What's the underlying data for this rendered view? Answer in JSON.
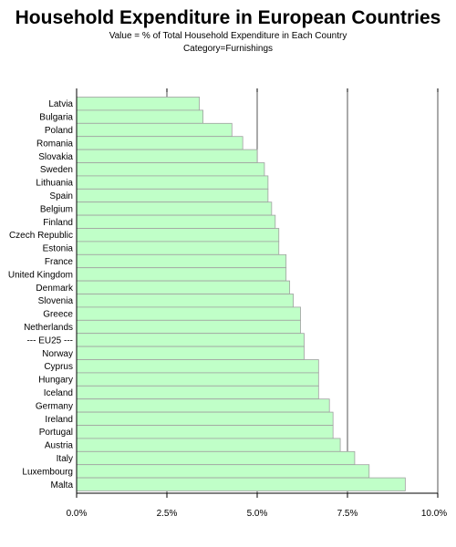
{
  "chart_data": {
    "type": "bar",
    "orientation": "horizontal",
    "title": "Household Expenditure in European Countries",
    "subtitle": "Value = % of Total Household Expenditure in Each Country",
    "subtitle2": "Category=Furnishings",
    "xlabel": "",
    "ylabel": "",
    "xlim": [
      0,
      10
    ],
    "x_ticks": [
      0,
      2.5,
      5,
      7.5,
      10
    ],
    "x_tick_labels": [
      "0.0%",
      "2.5%",
      "5.0%",
      "7.5%",
      "10.0%"
    ],
    "grid": "vertical at 2.5% steps",
    "bar_color": "#c0ffc8",
    "bar_edge_color": "#a0a0a0",
    "categories": [
      "Latvia",
      "Bulgaria",
      "Poland",
      "Romania",
      "Slovakia",
      "Sweden",
      "Lithuania",
      "Spain",
      "Belgium",
      "Finland",
      "Czech Republic",
      "Estonia",
      "France",
      "United Kingdom",
      "Denmark",
      "Slovenia",
      "Greece",
      "Netherlands",
      "--- EU25 ---",
      "Norway",
      "Cyprus",
      "Hungary",
      "Iceland",
      "Germany",
      "Ireland",
      "Portugal",
      "Austria",
      "Italy",
      "Luxembourg",
      "Malta"
    ],
    "values": [
      3.4,
      3.5,
      4.3,
      4.6,
      5.0,
      5.2,
      5.3,
      5.3,
      5.4,
      5.5,
      5.6,
      5.6,
      5.8,
      5.8,
      5.9,
      6.0,
      6.2,
      6.2,
      6.3,
      6.3,
      6.7,
      6.7,
      6.7,
      7.0,
      7.1,
      7.1,
      7.3,
      7.7,
      8.1,
      9.1
    ]
  }
}
